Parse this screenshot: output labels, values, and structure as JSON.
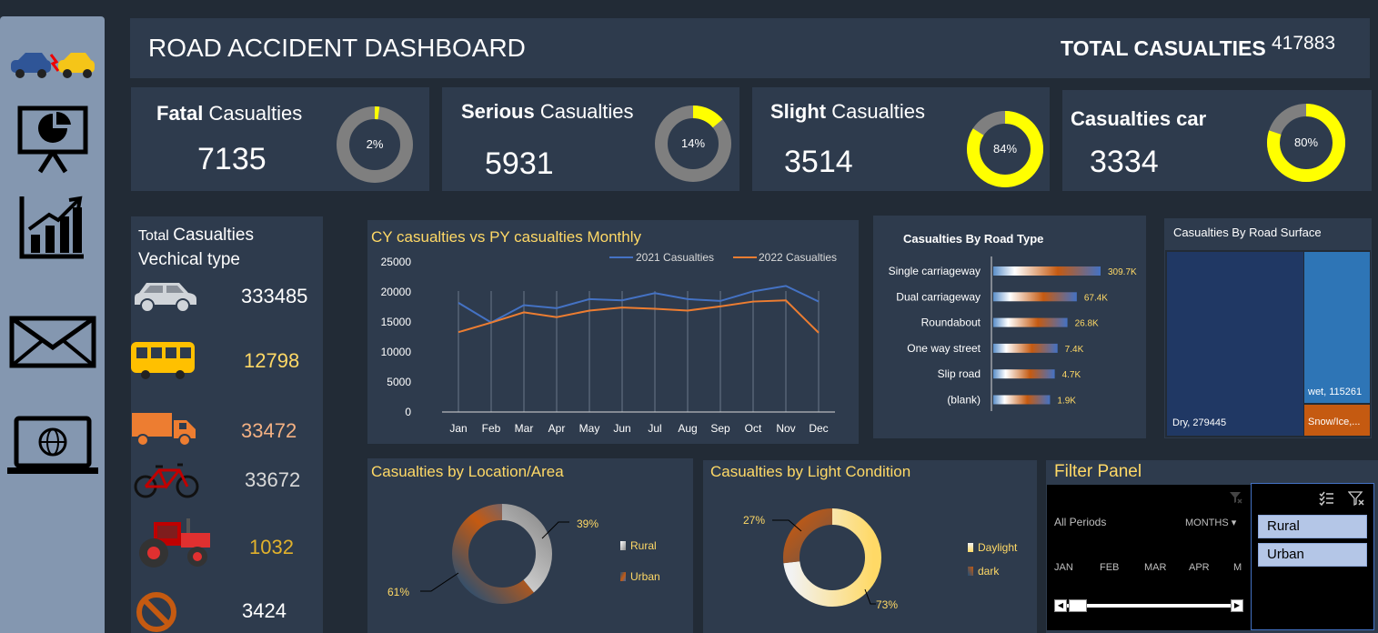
{
  "sidebar": {
    "items": [
      {
        "icon": "car-crash-icon"
      },
      {
        "icon": "presentation-chart-icon"
      },
      {
        "icon": "growth-chart-icon"
      },
      {
        "icon": "mail-icon"
      },
      {
        "icon": "laptop-globe-icon"
      }
    ]
  },
  "header": {
    "title": "ROAD ACCIDENT DASHBOARD",
    "total_label": "TOTAL CASUALTIES",
    "total_value": "417883"
  },
  "kpis": [
    {
      "bold": "Fatal",
      "rest": " Casualties",
      "value": "7135",
      "pct_label": "2%",
      "pct": 0.02
    },
    {
      "bold": "Serious",
      "rest": " Casualties",
      "value": "5931",
      "pct_label": "14%",
      "pct": 0.14
    },
    {
      "bold": "Slight",
      "rest": " Casualties",
      "value": "3514",
      "pct_label": "84%",
      "pct": 0.84
    },
    {
      "bold": "Casualties car",
      "rest": "",
      "value": "3334",
      "pct_label": "80%",
      "pct": 0.8
    }
  ],
  "colors": {
    "accent": "#ffff00",
    "ring_bg": "#7f7f7f",
    "line_2021": "#4472c4",
    "line_2022": "#ed7d31",
    "title_yellow": "#ffd966"
  },
  "vehicles": {
    "title_a": "Total ",
    "title_b": "Casualties",
    "title_c": "Vechical type",
    "items": [
      {
        "icon": "car-icon",
        "value": "333485",
        "color": "#ffe6cc"
      },
      {
        "icon": "bus-icon",
        "value": "12798",
        "color": "#ffd966"
      },
      {
        "icon": "truck-icon",
        "value": "33472",
        "color": "#f4b183"
      },
      {
        "icon": "bicycle-icon",
        "value": "33672",
        "color": "#d9d9d9"
      },
      {
        "icon": "tractor-icon",
        "value": "1032",
        "color": "#e1b12c"
      },
      {
        "icon": "no-entry-icon",
        "value": "3424",
        "color": "#ffffff"
      }
    ]
  },
  "chart_data": [
    {
      "type": "line",
      "title": "CY casualties vs PY casualties Monthly",
      "categories": [
        "Jan",
        "Feb",
        "Mar",
        "Apr",
        "May",
        "Jun",
        "Jul",
        "Aug",
        "Sep",
        "Oct",
        "Nov",
        "Dec"
      ],
      "series": [
        {
          "name": "2021 Casualties",
          "values": [
            18200,
            14900,
            17800,
            17300,
            18800,
            18600,
            19800,
            18800,
            18500,
            20100,
            21000,
            18400
          ]
        },
        {
          "name": "2022 Casualties",
          "values": [
            13300,
            14900,
            16600,
            15800,
            16900,
            17400,
            17200,
            16900,
            17600,
            18400,
            18600,
            13200
          ]
        }
      ],
      "yticks": [
        "0",
        "5000",
        "10000",
        "15000",
        "20000",
        "25000"
      ],
      "ylim": [
        0,
        25000
      ],
      "legend": "top-right"
    },
    {
      "type": "bar",
      "title": "Casualties By Road Type",
      "categories": [
        "Single carriageway",
        "Dual carriageway",
        "Roundabout",
        "One way street",
        "Slip road",
        "(blank)"
      ],
      "values": [
        309700,
        67400,
        26800,
        7400,
        4700,
        1900
      ],
      "labels": [
        "309.7K",
        "67.4K",
        "26.8K",
        "7.4K",
        "4.7K",
        "1.9K"
      ]
    },
    {
      "type": "heatmap",
      "title": "Casualties By Road Surface",
      "items": [
        {
          "label": "Dry, 279445",
          "value": 279445
        },
        {
          "label": "wet, 115261",
          "value": 115261
        },
        {
          "label": "Snow/Ice,...",
          "value": 23177
        }
      ]
    },
    {
      "type": "pie",
      "title": "Casualties by Location/Area",
      "slices": [
        {
          "name": "Rural",
          "pct": 39,
          "label": "39%"
        },
        {
          "name": "Urban",
          "pct": 61,
          "label": "61%"
        }
      ],
      "legend": "right"
    },
    {
      "type": "pie",
      "title": "Casualties by Light Condition",
      "slices": [
        {
          "name": "Daylight",
          "pct": 73,
          "label": "73%"
        },
        {
          "name": "dark",
          "pct": 27,
          "label": "27%"
        }
      ],
      "legend": "right"
    }
  ],
  "filter": {
    "title": "Filter Panel",
    "period_label": "All Periods",
    "period_unit": "MONTHS",
    "months": [
      "JAN",
      "FEB",
      "MAR",
      "APR",
      "M"
    ],
    "options": [
      "Rural",
      "Urban"
    ]
  }
}
